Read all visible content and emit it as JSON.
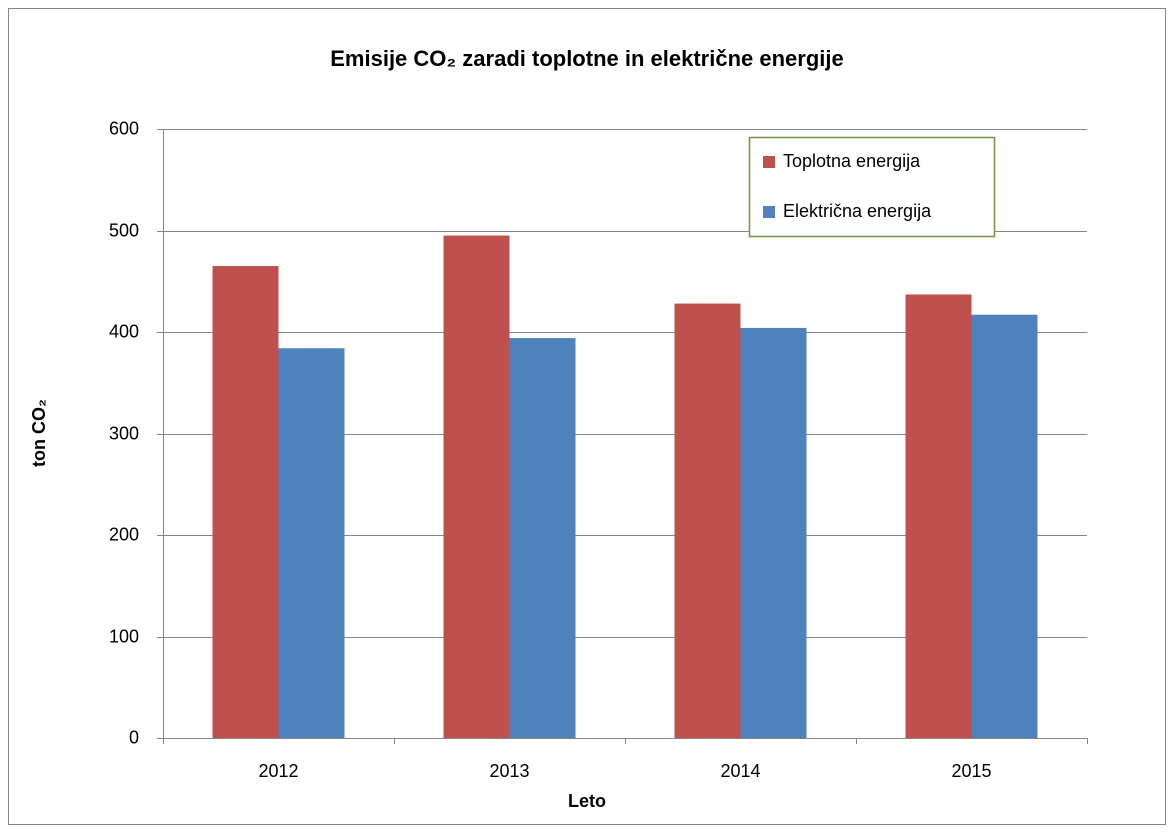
{
  "chart_data": {
    "type": "bar",
    "title": "Emisije CO₂ zaradi toplotne in električne energije",
    "x_label": "Leto",
    "y_label": "ton CO₂",
    "categories": [
      "2012",
      "2013",
      "2014",
      "2015"
    ],
    "series": [
      {
        "name": "Toplotna energija",
        "color": "#c0504d",
        "values": [
          465,
          495,
          428,
          437
        ]
      },
      {
        "name": "Električna energija",
        "color": "#4f81bd",
        "values": [
          384,
          394,
          404,
          417
        ]
      }
    ],
    "ylim": [
      0,
      600
    ],
    "yticks": [
      0,
      100,
      200,
      300,
      400,
      500,
      600
    ],
    "grid": true,
    "legend": "upper right"
  }
}
